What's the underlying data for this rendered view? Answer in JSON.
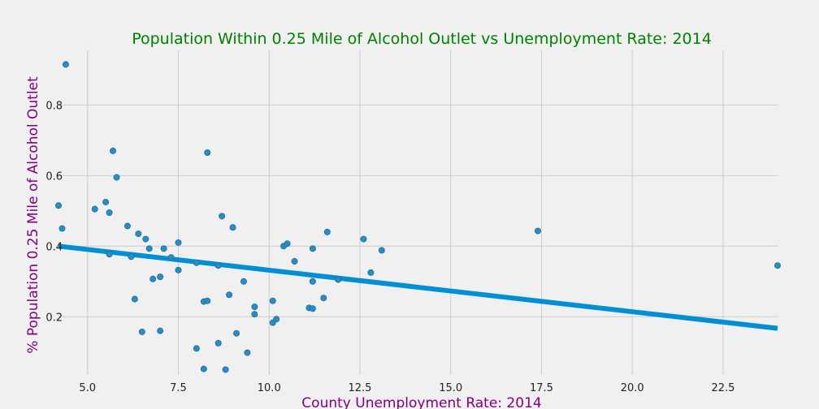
{
  "chart_data": {
    "type": "scatter",
    "title": "Population Within 0.25 Mile of Alcohol Outlet vs Unemployment Rate: 2014",
    "xlabel": "County Unemployment Rate: 2014",
    "ylabel": "% Population 0.25 Mile of Alcohol Outlet",
    "xlim": [
      4.2,
      24.0
    ],
    "ylim": [
      0.035,
      0.955
    ],
    "xticks": [
      5.0,
      7.5,
      10.0,
      12.5,
      15.0,
      17.5,
      20.0,
      22.5
    ],
    "xtick_labels": [
      "5.0",
      "7.5",
      "10.0",
      "12.5",
      "15.0",
      "17.5",
      "20.0",
      "22.5"
    ],
    "yticks": [
      0.2,
      0.4,
      0.6,
      0.8
    ],
    "ytick_labels": [
      "0.2",
      "0.4",
      "0.6",
      "0.8"
    ],
    "grid": true,
    "legend": "none",
    "colors": {
      "points": "#2b8cc4",
      "line": "#008fd5",
      "title": "#008000",
      "axis_label": "#800080",
      "background": "#f0f0f0"
    },
    "trend_line": {
      "x": [
        4.2,
        24.0
      ],
      "y": [
        0.4,
        0.167
      ]
    },
    "points": [
      {
        "x": 4.2,
        "y": 0.515
      },
      {
        "x": 4.3,
        "y": 0.45
      },
      {
        "x": 4.4,
        "y": 0.915
      },
      {
        "x": 5.2,
        "y": 0.505
      },
      {
        "x": 5.5,
        "y": 0.525
      },
      {
        "x": 5.6,
        "y": 0.495
      },
      {
        "x": 5.6,
        "y": 0.377
      },
      {
        "x": 5.7,
        "y": 0.67
      },
      {
        "x": 5.8,
        "y": 0.595
      },
      {
        "x": 6.1,
        "y": 0.457
      },
      {
        "x": 6.2,
        "y": 0.37
      },
      {
        "x": 6.3,
        "y": 0.25
      },
      {
        "x": 6.4,
        "y": 0.435
      },
      {
        "x": 6.5,
        "y": 0.157
      },
      {
        "x": 6.6,
        "y": 0.42
      },
      {
        "x": 6.7,
        "y": 0.393
      },
      {
        "x": 6.8,
        "y": 0.307
      },
      {
        "x": 7.0,
        "y": 0.313
      },
      {
        "x": 7.0,
        "y": 0.16
      },
      {
        "x": 7.1,
        "y": 0.393
      },
      {
        "x": 7.3,
        "y": 0.368
      },
      {
        "x": 7.5,
        "y": 0.41
      },
      {
        "x": 7.5,
        "y": 0.332
      },
      {
        "x": 8.0,
        "y": 0.353
      },
      {
        "x": 8.0,
        "y": 0.11
      },
      {
        "x": 8.2,
        "y": 0.243
      },
      {
        "x": 8.2,
        "y": 0.052
      },
      {
        "x": 8.3,
        "y": 0.245
      },
      {
        "x": 8.3,
        "y": 0.665
      },
      {
        "x": 8.6,
        "y": 0.345
      },
      {
        "x": 8.6,
        "y": 0.125
      },
      {
        "x": 8.7,
        "y": 0.485
      },
      {
        "x": 8.8,
        "y": 0.05
      },
      {
        "x": 8.9,
        "y": 0.262
      },
      {
        "x": 9.0,
        "y": 0.453
      },
      {
        "x": 9.1,
        "y": 0.153
      },
      {
        "x": 9.3,
        "y": 0.3
      },
      {
        "x": 9.4,
        "y": 0.098
      },
      {
        "x": 9.6,
        "y": 0.228
      },
      {
        "x": 9.6,
        "y": 0.207
      },
      {
        "x": 10.1,
        "y": 0.245
      },
      {
        "x": 10.1,
        "y": 0.183
      },
      {
        "x": 10.2,
        "y": 0.193
      },
      {
        "x": 10.4,
        "y": 0.4
      },
      {
        "x": 10.5,
        "y": 0.407
      },
      {
        "x": 10.7,
        "y": 0.357
      },
      {
        "x": 11.1,
        "y": 0.225
      },
      {
        "x": 11.2,
        "y": 0.223
      },
      {
        "x": 11.2,
        "y": 0.393
      },
      {
        "x": 11.2,
        "y": 0.3
      },
      {
        "x": 11.5,
        "y": 0.253
      },
      {
        "x": 11.6,
        "y": 0.44
      },
      {
        "x": 11.9,
        "y": 0.305
      },
      {
        "x": 12.6,
        "y": 0.42
      },
      {
        "x": 12.8,
        "y": 0.325
      },
      {
        "x": 13.1,
        "y": 0.388
      },
      {
        "x": 17.4,
        "y": 0.443
      },
      {
        "x": 24.0,
        "y": 0.345
      }
    ]
  }
}
